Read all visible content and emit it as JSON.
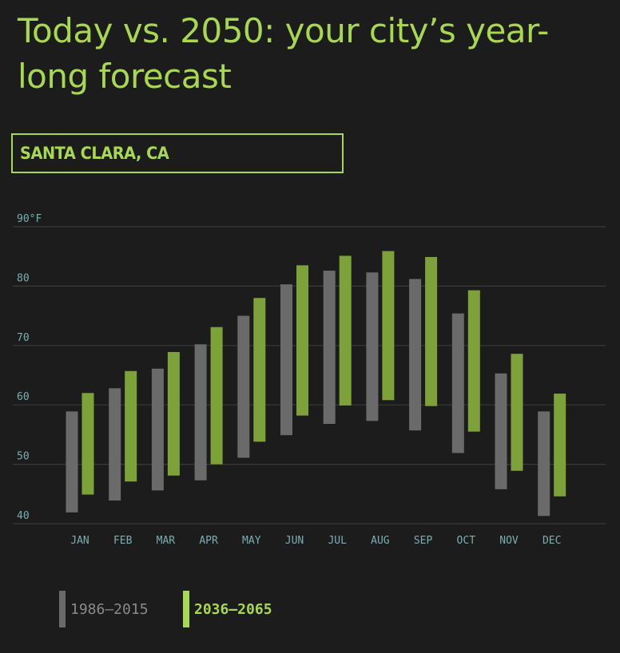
{
  "title": "Today vs. 2050: your city’s year-long forecast",
  "city": "SANTA CLARA, CA",
  "colors": {
    "background": "#1c1c1c",
    "accent": "#a8d84f",
    "historical": "#6a6a6a",
    "future": "#7ea23a",
    "axis_text": "#7aaeb3",
    "grid": "#3a3a3a",
    "legend_historical_text": "#8a8a8a"
  },
  "legend": {
    "historical": "1986–2015",
    "future": "2036–2065"
  },
  "chart_data": {
    "type": "bar",
    "subtype": "floating-range",
    "categories": [
      "JAN",
      "FEB",
      "MAR",
      "APR",
      "MAY",
      "JUN",
      "JUL",
      "AUG",
      "SEP",
      "OCT",
      "NOV",
      "DEC"
    ],
    "ylim": [
      40,
      90
    ],
    "yticks": [
      40,
      50,
      60,
      70,
      80,
      90
    ],
    "ytick_labels": [
      "40",
      "50",
      "60",
      "70",
      "80",
      "90°F"
    ],
    "grid": true,
    "legend_position": "bottom-left",
    "series": [
      {
        "name": "1986–2015",
        "low": [
          41.9,
          43.9,
          45.6,
          47.3,
          51.1,
          54.9,
          56.8,
          57.3,
          55.7,
          51.9,
          45.8,
          41.3
        ],
        "high": [
          58.9,
          62.8,
          66.1,
          70.2,
          75.0,
          80.3,
          82.6,
          82.3,
          81.2,
          75.4,
          65.3,
          58.9
        ]
      },
      {
        "name": "2036–2065",
        "low": [
          44.9,
          47.1,
          48.1,
          50.0,
          53.8,
          58.2,
          59.9,
          60.8,
          59.8,
          55.5,
          48.9,
          44.6
        ],
        "high": [
          62.0,
          65.7,
          68.9,
          73.1,
          78.0,
          83.5,
          85.1,
          85.9,
          84.9,
          79.3,
          68.6,
          61.9
        ]
      }
    ]
  }
}
